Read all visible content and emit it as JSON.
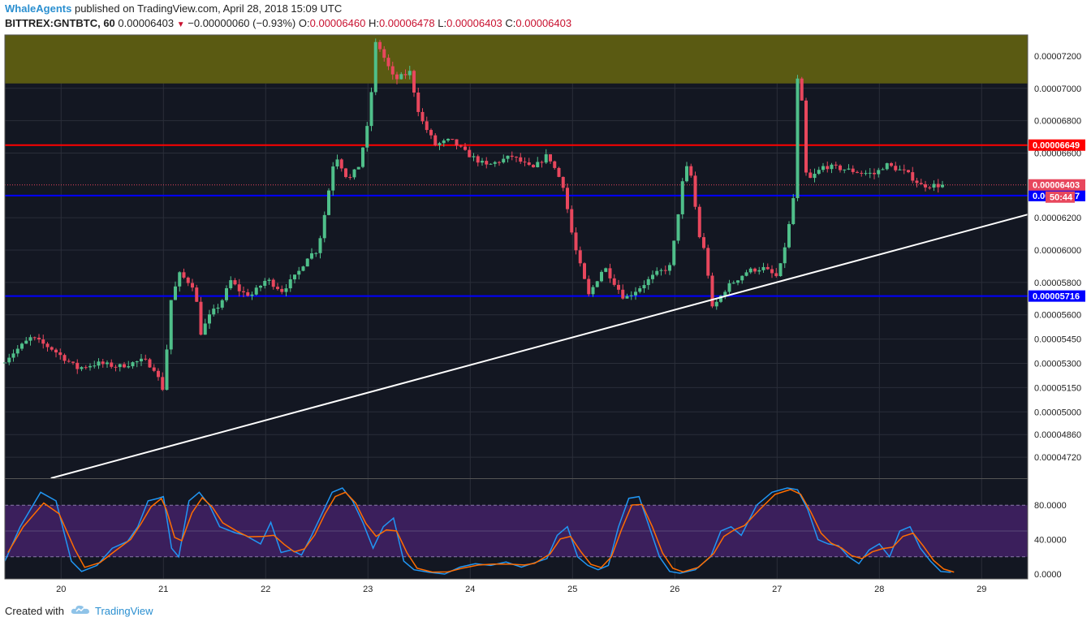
{
  "header": {
    "author": "WhaleAgents",
    "published_text": "published on TradingView.com, April 28, 2018 15:09 UTC",
    "symbol": "BITTREX:GNTBTC, 60",
    "last": "0.00006403",
    "change_icon": "down-triangle-icon",
    "change": "−0.00000060 (−0.93%)",
    "o_label": "O:",
    "o_value": "0.00006460",
    "h_label": "H:",
    "h_value": "0.00006478",
    "l_label": "L:",
    "l_value": "0.00006403",
    "c_label": "C:",
    "c_value": "0.00006403"
  },
  "footer": {
    "created_with": "Created with",
    "brand": "TradingView",
    "brand_icon": "tradingview-cloud-icon"
  },
  "chart_data": {
    "type": "candlestick",
    "colors": {
      "background": "#131722",
      "up": "#4fbf8a",
      "down": "#e8475d",
      "grid": "#2a2e39",
      "resistance_zone": "#5a5a12",
      "red_line": "#ff0000",
      "blue_line": "#0000ff",
      "trendline": "#ffffff",
      "stoch_k": "#2196f3",
      "stoch_d": "#ff6d00",
      "stoch_band": "#3b1f5c"
    },
    "x_ticks": [
      "20",
      "21",
      "22",
      "23",
      "24",
      "25",
      "26",
      "27",
      "28",
      "29"
    ],
    "x_range": [
      19.45,
      29.45
    ],
    "y_range": [
      4.59e-05,
      7.33e-05
    ],
    "y_ticks": [
      "0.00007200",
      "0.00007000",
      "0.00006800",
      "0.00006600",
      "0.00006200",
      "0.00006000",
      "0.00005800",
      "0.00005600",
      "0.00005450",
      "0.00005300",
      "0.00005150",
      "0.00005000",
      "0.00004860",
      "0.00004720"
    ],
    "y_tick_values": [
      7.2e-05,
      7e-05,
      6.8e-05,
      6.6e-05,
      6.2e-05,
      6e-05,
      5.8e-05,
      5.6e-05,
      5.45e-05,
      5.3e-05,
      5.15e-05,
      5e-05,
      4.86e-05,
      4.72e-05
    ],
    "resistance_zone": [
      7.03e-05,
      7.33e-05
    ],
    "horizontal_lines": [
      {
        "label": "0.00006649",
        "value": 6.649e-05,
        "color": "#ff0000"
      },
      {
        "label": "0.00006337",
        "value": 6.337e-05,
        "color": "#0000ff"
      },
      {
        "label": "0.00005716",
        "value": 5.716e-05,
        "color": "#0000ff"
      }
    ],
    "last_price": {
      "label": "0.00006403",
      "value": 6.403e-05,
      "countdown": "50:44"
    },
    "trendline": {
      "start": [
        19.9,
        4.59e-05
      ],
      "end": [
        29.45,
        6.22e-05
      ]
    },
    "path": [
      [
        19.45,
        5.3e-05
      ],
      [
        19.75,
        5.46e-05
      ],
      [
        19.95,
        5.39e-05
      ],
      [
        20.2,
        5.27e-05
      ],
      [
        20.4,
        5.3e-05
      ],
      [
        20.6,
        5.28e-05
      ],
      [
        20.85,
        5.32e-05
      ],
      [
        20.95,
        5.27e-05
      ],
      [
        21.05,
        5.12e-05
      ],
      [
        21.1,
        5.66e-05
      ],
      [
        21.2,
        5.85e-05
      ],
      [
        21.35,
        5.77e-05
      ],
      [
        21.4,
        5.48e-05
      ],
      [
        21.5,
        5.6e-05
      ],
      [
        21.6,
        5.67e-05
      ],
      [
        21.7,
        5.81e-05
      ],
      [
        21.8,
        5.74e-05
      ],
      [
        21.9,
        5.72e-05
      ],
      [
        22.05,
        5.82e-05
      ],
      [
        22.2,
        5.75e-05
      ],
      [
        22.35,
        5.85e-05
      ],
      [
        22.45,
        5.96e-05
      ],
      [
        22.55,
        6e-05
      ],
      [
        22.62,
        6.23e-05
      ],
      [
        22.72,
        6.6e-05
      ],
      [
        22.85,
        6.43e-05
      ],
      [
        22.95,
        6.52e-05
      ],
      [
        23.05,
        6.8e-05
      ],
      [
        23.12,
        7.3e-05
      ],
      [
        23.3,
        7.05e-05
      ],
      [
        23.45,
        7.1e-05
      ],
      [
        23.55,
        6.82e-05
      ],
      [
        23.7,
        6.65e-05
      ],
      [
        23.85,
        6.68e-05
      ],
      [
        24.0,
        6.6e-05
      ],
      [
        24.2,
        6.52e-05
      ],
      [
        24.45,
        6.58e-05
      ],
      [
        24.65,
        6.5e-05
      ],
      [
        24.8,
        6.59e-05
      ],
      [
        24.95,
        6.4e-05
      ],
      [
        25.05,
        6.05e-05
      ],
      [
        25.2,
        5.72e-05
      ],
      [
        25.35,
        5.9e-05
      ],
      [
        25.55,
        5.7e-05
      ],
      [
        25.7,
        5.77e-05
      ],
      [
        25.85,
        5.85e-05
      ],
      [
        26.0,
        5.9e-05
      ],
      [
        26.12,
        6.43e-05
      ],
      [
        26.18,
        6.55e-05
      ],
      [
        26.28,
        6.09e-05
      ],
      [
        26.35,
        5.96e-05
      ],
      [
        26.4,
        5.63e-05
      ],
      [
        26.55,
        5.77e-05
      ],
      [
        26.75,
        5.87e-05
      ],
      [
        26.9,
        5.89e-05
      ],
      [
        27.05,
        5.83e-05
      ],
      [
        27.15,
        6.12e-05
      ],
      [
        27.22,
        6.4e-05
      ],
      [
        27.25,
        7.3e-05
      ],
      [
        27.32,
        6.48e-05
      ],
      [
        27.35,
        6.43e-05
      ],
      [
        27.5,
        6.52e-05
      ],
      [
        27.7,
        6.5e-05
      ],
      [
        27.85,
        6.48e-05
      ],
      [
        28.0,
        6.47e-05
      ],
      [
        28.1,
        6.53e-05
      ],
      [
        28.3,
        6.48e-05
      ],
      [
        28.45,
        6.4e-05
      ],
      [
        28.62,
        6.4e-05
      ]
    ],
    "stoch_range": [
      0,
      100
    ],
    "stoch_ticks": [
      "80.0000",
      "40.0000",
      "0.0000"
    ],
    "stoch_tick_values": [
      80,
      40,
      0
    ],
    "stoch_band": [
      20,
      80
    ],
    "stoch_path": [
      [
        19.45,
        15
      ],
      [
        19.6,
        55
      ],
      [
        19.8,
        95
      ],
      [
        19.95,
        85
      ],
      [
        20.1,
        15
      ],
      [
        20.2,
        3
      ],
      [
        20.35,
        10
      ],
      [
        20.5,
        30
      ],
      [
        20.65,
        38
      ],
      [
        20.75,
        55
      ],
      [
        20.85,
        85
      ],
      [
        20.95,
        88
      ],
      [
        21.0,
        90
      ],
      [
        21.08,
        30
      ],
      [
        21.15,
        20
      ],
      [
        21.25,
        85
      ],
      [
        21.35,
        95
      ],
      [
        21.45,
        80
      ],
      [
        21.55,
        55
      ],
      [
        21.7,
        48
      ],
      [
        21.8,
        45
      ],
      [
        21.95,
        35
      ],
      [
        22.05,
        60
      ],
      [
        22.15,
        25
      ],
      [
        22.25,
        28
      ],
      [
        22.35,
        22
      ],
      [
        22.45,
        45
      ],
      [
        22.55,
        70
      ],
      [
        22.65,
        95
      ],
      [
        22.75,
        100
      ],
      [
        22.85,
        85
      ],
      [
        22.95,
        60
      ],
      [
        23.05,
        30
      ],
      [
        23.15,
        55
      ],
      [
        23.25,
        65
      ],
      [
        23.35,
        15
      ],
      [
        23.45,
        5
      ],
      [
        23.6,
        2
      ],
      [
        23.75,
        0
      ],
      [
        23.9,
        8
      ],
      [
        24.05,
        12
      ],
      [
        24.2,
        10
      ],
      [
        24.35,
        14
      ],
      [
        24.5,
        8
      ],
      [
        24.6,
        12
      ],
      [
        24.75,
        18
      ],
      [
        24.85,
        45
      ],
      [
        24.95,
        55
      ],
      [
        25.05,
        20
      ],
      [
        25.15,
        10
      ],
      [
        25.25,
        5
      ],
      [
        25.35,
        10
      ],
      [
        25.45,
        55
      ],
      [
        25.55,
        88
      ],
      [
        25.65,
        90
      ],
      [
        25.75,
        55
      ],
      [
        25.85,
        20
      ],
      [
        25.95,
        3
      ],
      [
        26.05,
        1
      ],
      [
        26.2,
        5
      ],
      [
        26.35,
        20
      ],
      [
        26.45,
        50
      ],
      [
        26.55,
        55
      ],
      [
        26.65,
        45
      ],
      [
        26.8,
        80
      ],
      [
        26.95,
        95
      ],
      [
        27.1,
        100
      ],
      [
        27.2,
        98
      ],
      [
        27.3,
        75
      ],
      [
        27.4,
        40
      ],
      [
        27.5,
        35
      ],
      [
        27.6,
        33
      ],
      [
        27.7,
        20
      ],
      [
        27.8,
        12
      ],
      [
        27.9,
        28
      ],
      [
        28.0,
        35
      ],
      [
        28.1,
        20
      ],
      [
        28.2,
        50
      ],
      [
        28.3,
        55
      ],
      [
        28.4,
        30
      ],
      [
        28.5,
        15
      ],
      [
        28.6,
        3
      ],
      [
        28.7,
        2
      ]
    ]
  }
}
